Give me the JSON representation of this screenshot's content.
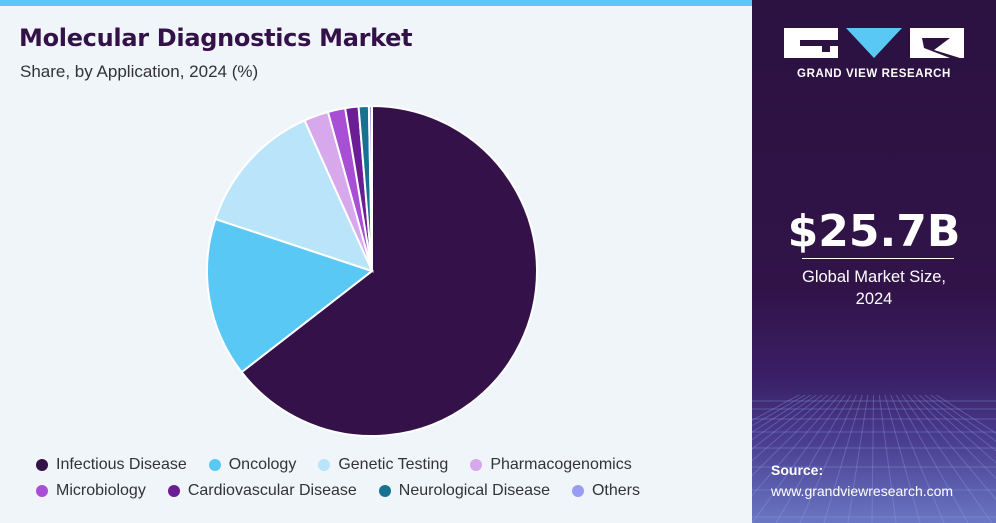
{
  "header": {
    "title": "Molecular Diagnostics Market",
    "subtitle": "Share, by Application, 2024 (%)"
  },
  "chart_data": {
    "type": "pie",
    "title": "Molecular Diagnostics Market",
    "subtitle": "Share, by Application, 2024 (%)",
    "legend_position": "bottom",
    "start_angle_deg": 0,
    "direction": "clockwise",
    "slices": [
      {
        "label": "Infectious Disease",
        "value": 64.5,
        "color": "#35114a"
      },
      {
        "label": "Oncology",
        "value": 15.6,
        "color": "#5ac8f5"
      },
      {
        "label": "Genetic Testing",
        "value": 13.2,
        "color": "#b9e4f9"
      },
      {
        "label": "Pharmacogenomics",
        "value": 2.4,
        "color": "#d7a8ec"
      },
      {
        "label": "Microbiology",
        "value": 1.7,
        "color": "#a94fd6"
      },
      {
        "label": "Cardiovascular Disease",
        "value": 1.3,
        "color": "#6a1d94"
      },
      {
        "label": "Neurological Disease",
        "value": 1.0,
        "color": "#17728f"
      },
      {
        "label": "Others",
        "value": 0.3,
        "color": "#9a9cf2"
      }
    ]
  },
  "legend": {
    "rows": [
      [
        0,
        1,
        2,
        3
      ],
      [
        4,
        5,
        6,
        7
      ]
    ]
  },
  "sidebar": {
    "brand_name": "GRAND VIEW RESEARCH",
    "market_size": "$25.7B",
    "market_label_line1": "Global Market Size,",
    "market_label_line2": "2024",
    "source_label": "Source:",
    "source_url": "www.grandviewresearch.com"
  },
  "colors": {
    "left_background": "#f0f5fa",
    "top_stripe": "#5ac8f5",
    "title_color": "#35114a",
    "sidebar_background": "#2b1241",
    "logo_accent": "#5ac8f5"
  }
}
